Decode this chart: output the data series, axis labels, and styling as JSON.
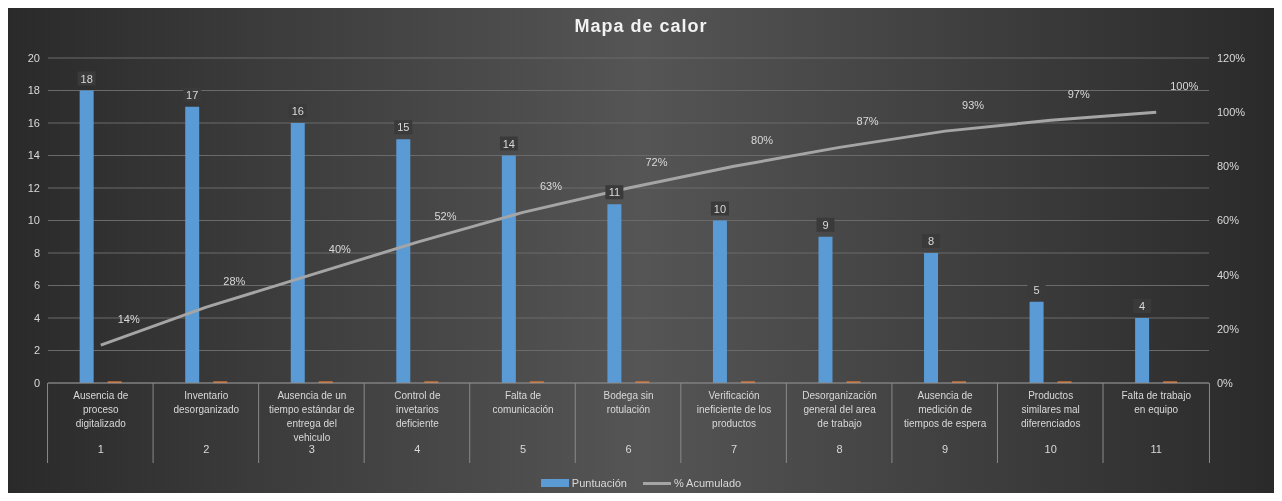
{
  "chart_data": {
    "type": "bar",
    "title": "Mapa de calor",
    "categories": [
      "Ausencia de proceso digitalizado",
      "Inventario desorganizado",
      "Ausencia de un tiempo estándar de entrega del vehiculo",
      "Control de invetarios deficiente",
      "Falta de comunicación",
      "Bodega sin rotulación",
      "Verificación ineficiente de los productos",
      "Desorganización general del area de trabajo",
      "Ausencia de medición de tiempos de espera",
      "Productos similares mal diferenciados",
      "Falta de trabajo en equipo"
    ],
    "annotations": [
      "1",
      "2",
      "3",
      "4",
      "5",
      "6",
      "7",
      "8",
      "9",
      "10",
      "11"
    ],
    "series": [
      {
        "name": "Puntuación",
        "color": "#5b9bd5",
        "values": [
          18,
          17,
          16,
          15,
          14,
          11,
          10,
          9,
          8,
          5,
          4
        ],
        "value_labels": [
          "18",
          "17",
          "16",
          "15",
          "14",
          "11",
          "10",
          "9",
          "8",
          "5",
          "4"
        ]
      },
      {
        "color": "#ed7d31",
        "values": [
          0.1,
          0.1,
          0.1,
          0.1,
          0.1,
          0.1,
          0.1,
          0.1,
          0.1,
          0.1,
          0.1
        ]
      },
      {
        "name": "% Acumulado",
        "type": "line",
        "axis": "y2",
        "color": "#a5a5a5",
        "values": [
          14,
          28,
          40,
          52,
          63,
          72,
          80,
          87,
          93,
          97,
          100
        ],
        "value_labels": [
          "14%",
          "28%",
          "40%",
          "52%",
          "63%",
          "72%",
          "80%",
          "87%",
          "93%",
          "97%",
          "100%"
        ]
      }
    ],
    "ylim": [
      0,
      20
    ],
    "yticks": [
      0,
      2,
      4,
      6,
      8,
      10,
      12,
      14,
      16,
      18,
      20
    ],
    "y2lim": [
      0,
      120
    ],
    "y2ticks": [
      {
        "value": 0,
        "label": "0%"
      },
      {
        "value": 20,
        "label": "20%"
      },
      {
        "value": 40,
        "label": "40%"
      },
      {
        "value": 60,
        "label": "60%"
      },
      {
        "value": 80,
        "label": "80%"
      },
      {
        "value": 100,
        "label": "100%"
      },
      {
        "value": 120,
        "label": "120%"
      }
    ],
    "grid": "y",
    "legend": "bottom",
    "marker": "none",
    "line_style": "solid"
  }
}
